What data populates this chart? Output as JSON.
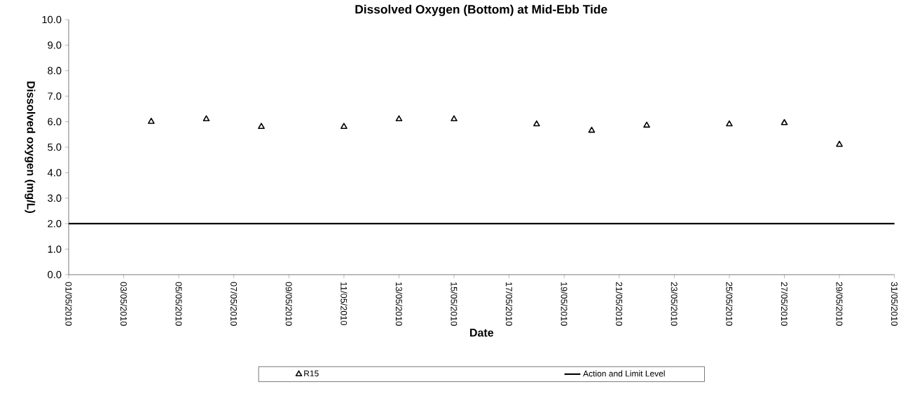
{
  "chart_data": {
    "type": "scatter",
    "title": "Dissolved Oxygen (Bottom) at Mid-Ebb Tide",
    "xlabel": "Date",
    "ylabel": "Dissolved oxygen (mg/L)",
    "x": [
      "2010-05-04",
      "2010-05-06",
      "2010-05-08",
      "2010-05-11",
      "2010-05-13",
      "2010-05-15",
      "2010-05-18",
      "2010-05-20",
      "2010-05-22",
      "2010-05-25",
      "2010-05-27",
      "2010-05-29"
    ],
    "series": [
      {
        "name": "R15",
        "color": "#000000",
        "values": [
          6.0,
          6.1,
          5.8,
          5.8,
          6.1,
          6.1,
          5.9,
          5.65,
          5.85,
          5.9,
          5.95,
          5.1
        ]
      }
    ],
    "marker": "triangle",
    "ref_lines": [
      {
        "axis": "y",
        "value": 2.0,
        "label": "Action and Limit Level",
        "color": "#000000"
      }
    ],
    "xlim": [
      "2010-05-01",
      "2010-05-31"
    ],
    "xticks": [
      {
        "value": "2010-05-01",
        "label": "01/05/2010"
      },
      {
        "value": "2010-05-03",
        "label": "03/05/2010"
      },
      {
        "value": "2010-05-05",
        "label": "05/05/2010"
      },
      {
        "value": "2010-05-07",
        "label": "07/05/2010"
      },
      {
        "value": "2010-05-09",
        "label": "09/05/2010"
      },
      {
        "value": "2010-05-11",
        "label": "11/05/2010"
      },
      {
        "value": "2010-05-13",
        "label": "13/05/2010"
      },
      {
        "value": "2010-05-15",
        "label": "15/05/2010"
      },
      {
        "value": "2010-05-17",
        "label": "17/05/2010"
      },
      {
        "value": "2010-05-19",
        "label": "19/05/2010"
      },
      {
        "value": "2010-05-21",
        "label": "21/05/2010"
      },
      {
        "value": "2010-05-23",
        "label": "23/05/2010"
      },
      {
        "value": "2010-05-25",
        "label": "25/05/2010"
      },
      {
        "value": "2010-05-27",
        "label": "27/05/2010"
      },
      {
        "value": "2010-05-29",
        "label": "29/05/2010"
      },
      {
        "value": "2010-05-31",
        "label": "31/05/2010"
      }
    ],
    "ylim": [
      0,
      10
    ],
    "yticks": [
      {
        "value": 0,
        "label": "0.0"
      },
      {
        "value": 1,
        "label": "1.0"
      },
      {
        "value": 2,
        "label": "2.0"
      },
      {
        "value": 3,
        "label": "3.0"
      },
      {
        "value": 4,
        "label": "4.0"
      },
      {
        "value": 5,
        "label": "5.0"
      },
      {
        "value": 6,
        "label": "6.0"
      },
      {
        "value": 7,
        "label": "7.0"
      },
      {
        "value": 8,
        "label": "8.0"
      },
      {
        "value": 9,
        "label": "9.0"
      },
      {
        "value": 10,
        "label": "10.0"
      }
    ],
    "legend": "bottom",
    "grid": false
  }
}
